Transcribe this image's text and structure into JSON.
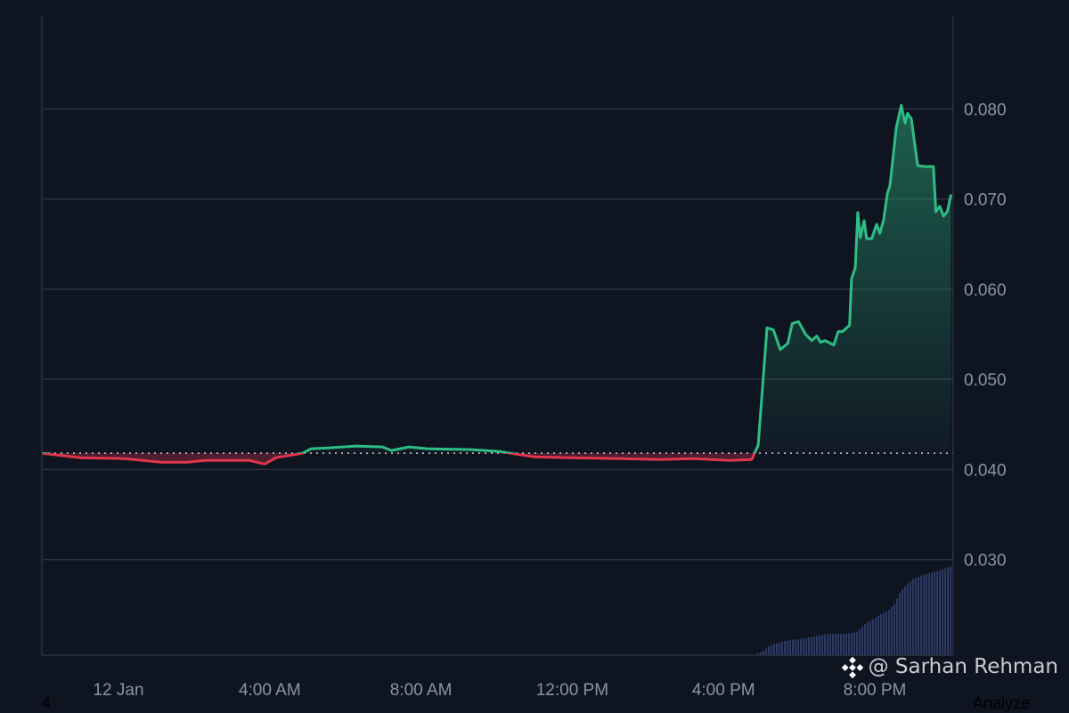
{
  "colors": {
    "background": "#0f1421",
    "grid": "#2a3040",
    "up": "#2ebd85",
    "down": "#e0364d",
    "volume": "#2b3a66",
    "axis_text": "#8b93a3"
  },
  "chart_data": {
    "type": "line",
    "baseline": 0.0418,
    "baseline_style": "dotted",
    "xlim": [
      "11 Jan 22:00",
      "12 Jan 22:03"
    ],
    "ylim": [
      0.0194,
      0.0903
    ],
    "grid": true,
    "y_axis_position": "right",
    "y_ticks": [
      "0.080",
      "0.070",
      "0.060",
      "0.050",
      "0.040",
      "0.030"
    ],
    "y_tick_values": [
      0.08,
      0.07,
      0.06,
      0.05,
      0.04,
      0.03
    ],
    "x_ticks": [
      "12 Jan",
      "4:00 AM",
      "8:00 AM",
      "12:00 PM",
      "4:00 PM",
      "8:00 PM"
    ],
    "x_tick_times": [
      "12 Jan 00:00",
      "12 Jan 04:00",
      "12 Jan 08:00",
      "12 Jan 12:00",
      "12 Jan 16:00",
      "12 Jan 20:00"
    ],
    "series": [
      {
        "x": [
          "11 Jan 22:00",
          "11 Jan 23:00",
          "12 Jan 00:10",
          "12 Jan 01:07",
          "12 Jan 01:49",
          "12 Jan 02:17",
          "12 Jan 03:00",
          "12 Jan 03:28",
          "12 Jan 03:52",
          "12 Jan 04:10",
          "12 Jan 04:52",
          "12 Jan 05:06",
          "12 Jan 05:35",
          "12 Jan 06:17",
          "12 Jan 06:59",
          "12 Jan 07:13",
          "12 Jan 07:41",
          "12 Jan 08:10",
          "12 Jan 09:20",
          "12 Jan 10:03",
          "12 Jan 10:31",
          "12 Jan 10:59",
          "12 Jan 11:56",
          "12 Jan 13:20",
          "12 Jan 14:17",
          "12 Jan 15:13",
          "12 Jan 16:10",
          "12 Jan 16:45",
          "12 Jan 16:55",
          "12 Jan 17:09",
          "12 Jan 17:19",
          "12 Jan 17:30",
          "12 Jan 17:42",
          "12 Jan 17:49",
          "12 Jan 17:59",
          "12 Jan 18:10",
          "12 Jan 18:20",
          "12 Jan 18:28",
          "12 Jan 18:34",
          "12 Jan 18:41",
          "12 Jan 18:55",
          "12 Jan 19:02",
          "12 Jan 19:09",
          "12 Jan 19:20",
          "12 Jan 19:23",
          "12 Jan 19:29",
          "12 Jan 19:33",
          "12 Jan 19:37",
          "12 Jan 19:43",
          "12 Jan 19:47",
          "12 Jan 19:55",
          "12 Jan 20:03",
          "12 Jan 20:08",
          "12 Jan 20:14",
          "12 Jan 20:20",
          "12 Jan 20:24",
          "12 Jan 20:34",
          "12 Jan 20:42",
          "12 Jan 20:48",
          "12 Jan 20:52",
          "12 Jan 20:58",
          "12 Jan 21:08",
          "12 Jan 21:20",
          "12 Jan 21:33",
          "12 Jan 21:37",
          "12 Jan 21:43",
          "12 Jan 21:49",
          "12 Jan 21:55",
          "12 Jan 22:01"
        ],
        "y": [
          0.0418,
          0.0413,
          0.0412,
          0.0408,
          0.0408,
          0.041,
          0.041,
          0.041,
          0.0406,
          0.0413,
          0.0418,
          0.0423,
          0.0424,
          0.0426,
          0.0425,
          0.0421,
          0.0425,
          0.0423,
          0.0422,
          0.042,
          0.0417,
          0.0414,
          0.0413,
          0.0412,
          0.0411,
          0.0412,
          0.041,
          0.0411,
          0.0427,
          0.0557,
          0.0555,
          0.0533,
          0.054,
          0.0562,
          0.0564,
          0.055,
          0.0543,
          0.0548,
          0.0541,
          0.0543,
          0.0538,
          0.0553,
          0.0553,
          0.056,
          0.0611,
          0.0624,
          0.0685,
          0.0657,
          0.0676,
          0.0656,
          0.0656,
          0.0672,
          0.0662,
          0.0677,
          0.0706,
          0.0715,
          0.0779,
          0.0804,
          0.0784,
          0.0795,
          0.0789,
          0.0737,
          0.0736,
          0.0736,
          0.0686,
          0.0692,
          0.0681,
          0.0686,
          0.0705
        ]
      }
    ],
    "volume": {
      "x": [
        "12 Jan 16:50",
        "12 Jan 17:00",
        "12 Jan 17:10",
        "12 Jan 17:20",
        "12 Jan 17:30",
        "12 Jan 17:45",
        "12 Jan 18:00",
        "12 Jan 18:15",
        "12 Jan 18:30",
        "12 Jan 18:45",
        "12 Jan 19:00",
        "12 Jan 19:15",
        "12 Jan 19:30",
        "12 Jan 19:40",
        "12 Jan 19:50",
        "12 Jan 20:00",
        "12 Jan 20:10",
        "12 Jan 20:20",
        "12 Jan 20:30",
        "12 Jan 20:40",
        "12 Jan 20:50",
        "12 Jan 21:00",
        "12 Jan 21:15",
        "12 Jan 21:30",
        "12 Jan 21:45",
        "12 Jan 22:00"
      ],
      "relative": [
        2,
        4,
        10,
        13,
        15,
        17,
        18,
        20,
        22,
        24,
        24,
        24,
        26,
        33,
        38,
        42,
        47,
        50,
        58,
        72,
        80,
        86,
        90,
        93,
        96,
        100
      ]
    }
  },
  "footer": {
    "page_number": "4",
    "watermark": "@ Sarhan Rehman",
    "analyze": "Analyze"
  }
}
